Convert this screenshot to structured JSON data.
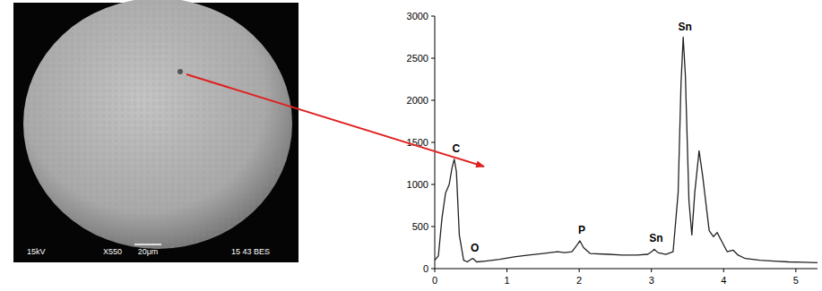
{
  "sem_image": {
    "voltage": "15kV",
    "magnification": "X550",
    "scale_bar": "20μm",
    "info": "15 43 BES"
  },
  "chart_data": {
    "type": "line",
    "color": "#222222",
    "x": [
      0.0,
      0.05,
      0.1,
      0.15,
      0.2,
      0.24,
      0.27,
      0.3,
      0.34,
      0.4,
      0.45,
      0.5,
      0.53,
      0.58,
      0.7,
      0.9,
      1.1,
      1.3,
      1.5,
      1.7,
      1.8,
      1.9,
      1.97,
      2.01,
      2.06,
      2.15,
      2.4,
      2.6,
      2.8,
      2.95,
      3.0,
      3.04,
      3.09,
      3.2,
      3.3,
      3.37,
      3.41,
      3.44,
      3.47,
      3.52,
      3.56,
      3.6,
      3.66,
      3.71,
      3.8,
      3.86,
      3.91,
      3.97,
      4.05,
      4.13,
      4.2,
      4.3,
      4.5,
      4.7,
      4.9,
      5.1,
      5.3
    ],
    "values": [
      100,
      150,
      600,
      900,
      1000,
      1200,
      1300,
      1150,
      400,
      100,
      80,
      110,
      120,
      80,
      90,
      110,
      140,
      160,
      180,
      200,
      190,
      200,
      280,
      330,
      250,
      180,
      170,
      160,
      160,
      170,
      200,
      230,
      190,
      170,
      200,
      900,
      2200,
      2750,
      2300,
      800,
      400,
      900,
      1400,
      1100,
      450,
      380,
      430,
      330,
      200,
      220,
      160,
      120,
      100,
      90,
      80,
      75,
      70
    ],
    "xlim": [
      0,
      5.3
    ],
    "xticks": [
      0,
      1,
      2,
      3,
      4,
      5
    ],
    "ylim": [
      0,
      3000
    ],
    "yticks": [
      0,
      500,
      1000,
      1500,
      2000,
      2500,
      3000
    ],
    "grid": false,
    "annotations": [
      {
        "text": "C",
        "x": 0.27,
        "y": 1300
      },
      {
        "text": "O",
        "x": 0.53,
        "y": 120
      },
      {
        "text": "P",
        "x": 2.01,
        "y": 330
      },
      {
        "text": "Sn",
        "x": 3.04,
        "y": 230
      },
      {
        "text": "Sn",
        "x": 3.44,
        "y": 2750
      }
    ]
  }
}
